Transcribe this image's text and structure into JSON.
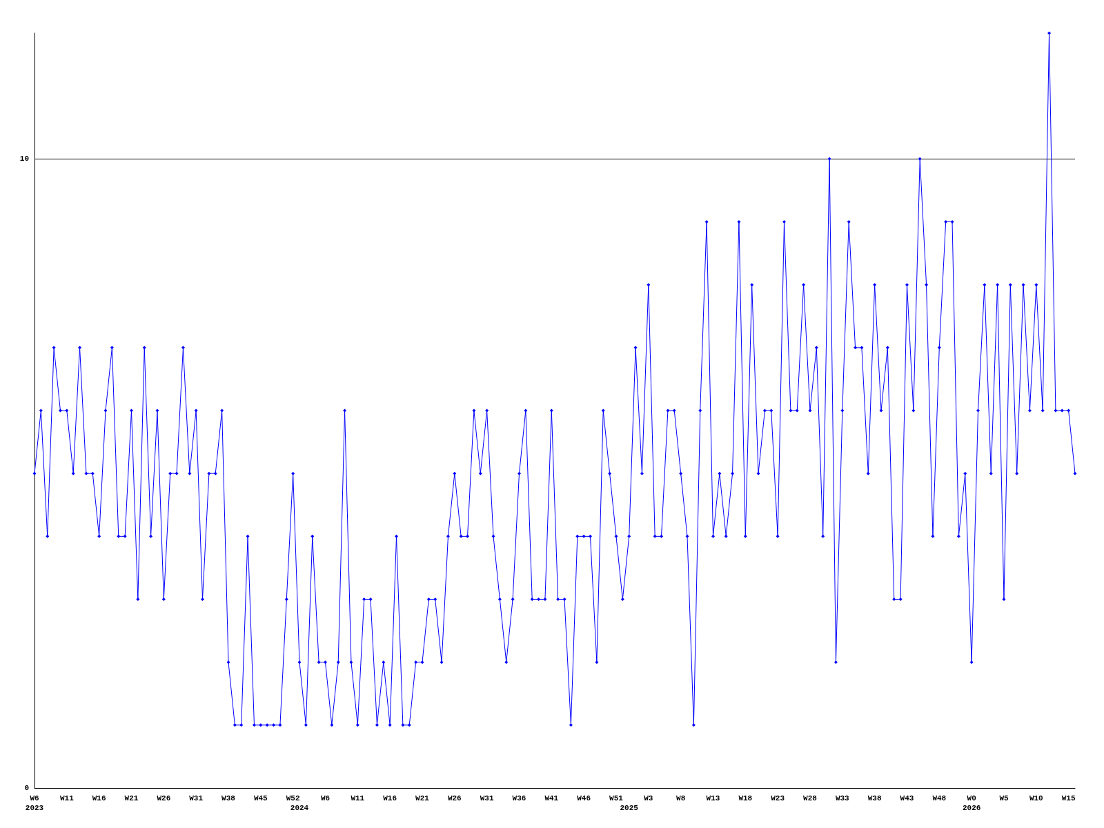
{
  "chart_data": {
    "type": "line",
    "categories": [
      "W6\n2023",
      null,
      null,
      null,
      null,
      "W11",
      null,
      null,
      null,
      null,
      "W16",
      null,
      null,
      null,
      null,
      "W21",
      null,
      null,
      null,
      null,
      "W26",
      null,
      null,
      null,
      null,
      "W31",
      null,
      null,
      null,
      null,
      "W38",
      null,
      null,
      null,
      null,
      "W45",
      null,
      null,
      null,
      null,
      "W52",
      "\n2024",
      null,
      null,
      null,
      "W6",
      null,
      null,
      null,
      null,
      "W11",
      null,
      null,
      null,
      null,
      "W16",
      null,
      null,
      null,
      null,
      "W21",
      null,
      null,
      null,
      null,
      "W26",
      null,
      null,
      null,
      null,
      "W31",
      null,
      null,
      null,
      null,
      "W36",
      null,
      null,
      null,
      null,
      "W41",
      null,
      null,
      null,
      null,
      "W46",
      null,
      null,
      null,
      null,
      "W51",
      null,
      "\n2025",
      null,
      null,
      "W3",
      null,
      null,
      null,
      null,
      "W8",
      null,
      null,
      null,
      null,
      "W13",
      null,
      null,
      null,
      null,
      "W18",
      null,
      null,
      null,
      null,
      "W23",
      null,
      null,
      null,
      null,
      "W28",
      null,
      null,
      null,
      null,
      "W33",
      null,
      null,
      null,
      null,
      "W38",
      null,
      null,
      null,
      null,
      "W43",
      null,
      null,
      null,
      null,
      "W48",
      null,
      null,
      null,
      null,
      "W0\n2026",
      null,
      null,
      null,
      null,
      "W5",
      null,
      null,
      null,
      null,
      "W10",
      null,
      null,
      null,
      null,
      "W15",
      null
    ],
    "series": [
      {
        "color": "#0000ff",
        "values": [
          5,
          6,
          4,
          7,
          6,
          6,
          5,
          7,
          5,
          5,
          4,
          6,
          7,
          4,
          4,
          6,
          3,
          7,
          4,
          6,
          3,
          5,
          5,
          7,
          5,
          6,
          3,
          5,
          5,
          6,
          2,
          1,
          1,
          4,
          1,
          1,
          1,
          1,
          1,
          3,
          5,
          2,
          1,
          4,
          2,
          2,
          1,
          2,
          6,
          2,
          1,
          3,
          3,
          1,
          2,
          1,
          4,
          1,
          1,
          2,
          2,
          3,
          3,
          2,
          4,
          5,
          4,
          4,
          6,
          5,
          6,
          4,
          3,
          2,
          3,
          5,
          6,
          3,
          3,
          3,
          6,
          3,
          3,
          1,
          4,
          4,
          4,
          2,
          6,
          5,
          4,
          3,
          4,
          7,
          5,
          8,
          4,
          4,
          6,
          6,
          5,
          4,
          1,
          6,
          9,
          4,
          5,
          4,
          5,
          9,
          4,
          8,
          5,
          6,
          6,
          4,
          9,
          6,
          6,
          8,
          6,
          7,
          4,
          10,
          2,
          6,
          9,
          7,
          7,
          5,
          8,
          6,
          7,
          3,
          3,
          8,
          6,
          10,
          8,
          4,
          7,
          9,
          9,
          4,
          5,
          2,
          6,
          8,
          5,
          8,
          3,
          8,
          5,
          8,
          6,
          8,
          6,
          12,
          6,
          6,
          6,
          5
        ]
      }
    ],
    "ylim": [
      0,
      12
    ],
    "yticks": [
      0,
      10
    ],
    "grid": "y",
    "marker": "diamond",
    "line_style": "solid"
  }
}
